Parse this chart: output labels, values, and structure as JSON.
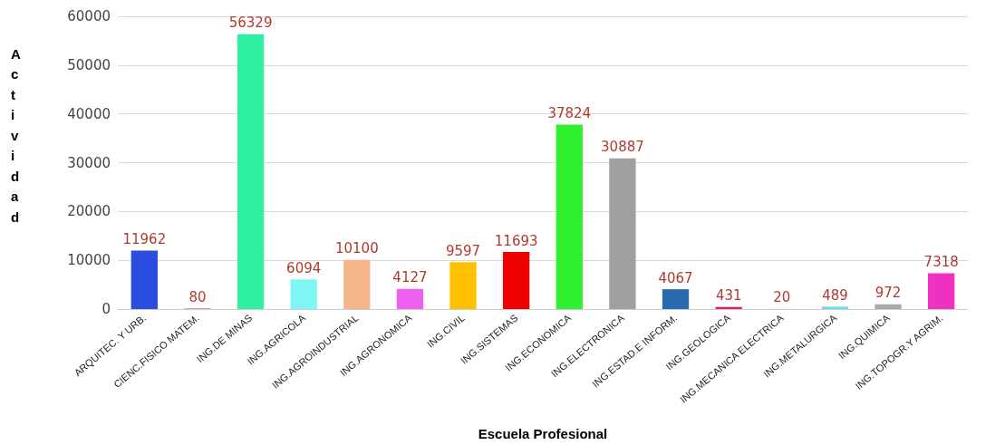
{
  "chart_data": {
    "type": "bar",
    "categories": [
      "ARQUITEC. Y URB.",
      "CIENC.FISICO MATEM.",
      "ING.DE MINAS",
      "ING.AGRICOLA",
      "ING.AGROINDUSTRIAL",
      "ING.AGRONOMICA",
      "ING.CIVIL",
      "ING.SISTEMAS",
      "ING.ECONOMICA",
      "ING.ELECTRONICA",
      "ING.ESTAD.E INFORM.",
      "ING.GEOLOGICA",
      "ING.MECANICA ELECTRICA",
      "ING.METALURGICA",
      "ING.QUIMICA",
      "ING.TOPOGR.Y AGRIM."
    ],
    "values": [
      11962,
      80,
      56329,
      6094,
      10100,
      4127,
      9597,
      11693,
      37824,
      30887,
      4067,
      431,
      20,
      489,
      972,
      7318
    ],
    "colors": [
      "#2a4de0",
      "#a32a1a",
      "#2ef0a0",
      "#7ff5f5",
      "#f5b58a",
      "#f060f0",
      "#ffc000",
      "#ee0000",
      "#2ef02e",
      "#a0a0a0",
      "#2a6aae",
      "#e0205a",
      "#70a030",
      "#6ad8ee",
      "#a8a8a8",
      "#f030c0"
    ],
    "xlabel": "Escuela Profesional",
    "ylabel": "Actividad",
    "ylim": [
      0,
      60000
    ],
    "yticks": [
      0,
      10000,
      20000,
      30000,
      40000,
      50000,
      60000
    ],
    "grid": "y",
    "data_labels": true
  }
}
